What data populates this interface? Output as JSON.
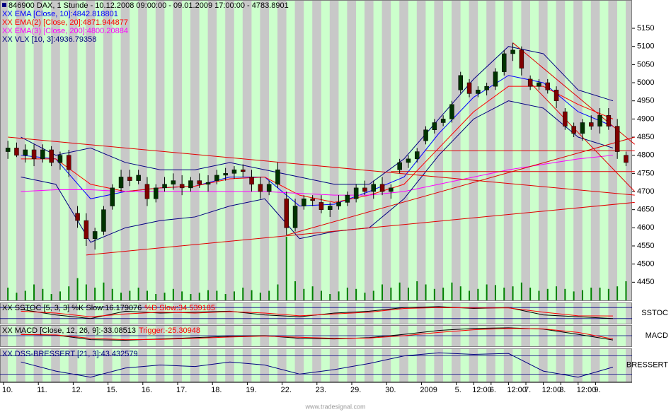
{
  "chart_data": {
    "type": "candlestick",
    "title": "846900 DAX, 1 Stunde - 10.12.2008 09:00:00 - 09.01.2009 17:00:00 - 4783.8901",
    "up_color": "#003300",
    "down_color": "#800000",
    "candles": [
      [
        4810,
        4840,
        4790,
        4820
      ],
      [
        4820,
        4835,
        4795,
        4800
      ],
      [
        4800,
        4830,
        4780,
        4815
      ],
      [
        4815,
        4830,
        4770,
        4790
      ],
      [
        4790,
        4830,
        4780,
        4815
      ],
      [
        4815,
        4825,
        4770,
        4780
      ],
      [
        4780,
        4810,
        4760,
        4800
      ],
      [
        4800,
        4815,
        4740,
        4760
      ],
      [
        4640,
        4660,
        4600,
        4620
      ],
      [
        4620,
        4640,
        4550,
        4570
      ],
      [
        4570,
        4600,
        4540,
        4590
      ],
      [
        4590,
        4660,
        4580,
        4650
      ],
      [
        4660,
        4720,
        4650,
        4710
      ],
      [
        4710,
        4760,
        4700,
        4740
      ],
      [
        4740,
        4760,
        4715,
        4730
      ],
      [
        4730,
        4760,
        4720,
        4745
      ],
      [
        4720,
        4740,
        4660,
        4680
      ],
      [
        4680,
        4720,
        4670,
        4710
      ],
      [
        4710,
        4740,
        4700,
        4720
      ],
      [
        4720,
        4750,
        4705,
        4730
      ],
      [
        4720,
        4745,
        4690,
        4710
      ],
      [
        4710,
        4740,
        4700,
        4730
      ],
      [
        4730,
        4750,
        4710,
        4720
      ],
      [
        4720,
        4745,
        4700,
        4725
      ],
      [
        4730,
        4760,
        4720,
        4745
      ],
      [
        4745,
        4765,
        4730,
        4750
      ],
      [
        4750,
        4770,
        4735,
        4760
      ],
      [
        4760,
        4775,
        4740,
        4755
      ],
      [
        4740,
        4760,
        4700,
        4720
      ],
      [
        4720,
        4740,
        4680,
        4700
      ],
      [
        4700,
        4730,
        4690,
        4720
      ],
      [
        4720,
        4780,
        4710,
        4760
      ],
      [
        4680,
        4700,
        4580,
        4600
      ],
      [
        4600,
        4680,
        4590,
        4660
      ],
      [
        4660,
        4690,
        4650,
        4680
      ],
      [
        4680,
        4690,
        4660,
        4675
      ],
      [
        4670,
        4690,
        4640,
        4650
      ],
      [
        4650,
        4670,
        4630,
        4660
      ],
      [
        4660,
        4690,
        4650,
        4670
      ],
      [
        4670,
        4700,
        4660,
        4690
      ],
      [
        4680,
        4720,
        4670,
        4710
      ],
      [
        4710,
        4730,
        4690,
        4700
      ],
      [
        4700,
        4730,
        4680,
        4720
      ],
      [
        4720,
        4740,
        4690,
        4700
      ],
      [
        4700,
        4720,
        4680,
        4710
      ],
      [
        4760,
        4790,
        4750,
        4780
      ],
      [
        4780,
        4800,
        4765,
        4790
      ],
      [
        4790,
        4820,
        4780,
        4810
      ],
      [
        4840,
        4880,
        4830,
        4870
      ],
      [
        4870,
        4900,
        4860,
        4890
      ],
      [
        4890,
        4910,
        4880,
        4900
      ],
      [
        4900,
        4950,
        4890,
        4940
      ],
      [
        4980,
        5030,
        4970,
        5020
      ],
      [
        5000,
        5010,
        4960,
        4970
      ],
      [
        4970,
        4990,
        4960,
        4980
      ],
      [
        4980,
        5000,
        4965,
        4990
      ],
      [
        4990,
        5040,
        4980,
        5030
      ],
      [
        5030,
        5090,
        5020,
        5080
      ],
      [
        5080,
        5110,
        5060,
        5090
      ],
      [
        5090,
        5100,
        5020,
        5040
      ],
      [
        5010,
        5020,
        4980,
        4990
      ],
      [
        4990,
        5010,
        4980,
        5000
      ],
      [
        5000,
        5010,
        4970,
        4980
      ],
      [
        4980,
        4990,
        4930,
        4950
      ],
      [
        4920,
        4930,
        4870,
        4880
      ],
      [
        4880,
        4890,
        4850,
        4860
      ],
      [
        4860,
        4900,
        4840,
        4890
      ],
      [
        4890,
        4910,
        4870,
        4880
      ],
      [
        4880,
        4930,
        4860,
        4910
      ],
      [
        4910,
        4930,
        4870,
        4880
      ],
      [
        4880,
        4900,
        4790,
        4810
      ],
      [
        4800,
        4810,
        4770,
        4780
      ]
    ],
    "ylim": [
      4400,
      5228
    ],
    "yticks": [
      4450,
      4500,
      4550,
      4600,
      4650,
      4700,
      4750,
      4800,
      4850,
      4900,
      4950,
      5000,
      5050,
      5100,
      5150
    ],
    "xticks": [
      {
        "value": 0,
        "label": "10."
      },
      {
        "value": 4,
        "label": "11."
      },
      {
        "value": 8,
        "label": "12."
      },
      {
        "value": 12,
        "label": "15."
      },
      {
        "value": 16,
        "label": "16."
      },
      {
        "value": 20,
        "label": "17."
      },
      {
        "value": 24,
        "label": "18."
      },
      {
        "value": 28,
        "label": "19."
      },
      {
        "value": 32,
        "label": "22."
      },
      {
        "value": 36,
        "label": "23."
      },
      {
        "value": 40,
        "label": "29."
      },
      {
        "value": 44,
        "label": "30."
      },
      {
        "value": 48,
        "label": "2009"
      },
      {
        "value": 52,
        "label": "5."
      },
      {
        "value": 54,
        "label": "12:00"
      },
      {
        "value": 56,
        "label": "6."
      },
      {
        "value": 58,
        "label": "12:00"
      },
      {
        "value": 60,
        "label": "7."
      },
      {
        "value": 62,
        "label": "12:00"
      },
      {
        "value": 64,
        "label": "8."
      },
      {
        "value": 66,
        "label": "12:00"
      },
      {
        "value": 68,
        "label": "9."
      }
    ],
    "line_x": [
      1.5,
      5.5,
      9.5,
      13.5,
      17.5,
      21.5,
      25.5,
      29.5,
      33.5,
      37.5,
      41.5,
      45.5,
      49.5,
      53.5,
      57.5,
      61.5,
      65.5,
      69.5
    ],
    "series": [
      {
        "name": "XX EMA [Close, 10]:4842.818801",
        "color": "#0000ff",
        "values": [
          4800,
          4790,
          4680,
          4700,
          4710,
          4715,
          4740,
          4740,
          4660,
          4665,
          4700,
          4740,
          4860,
          4960,
          5020,
          5000,
          4920,
          4880
        ]
      },
      {
        "name": "XX EMA(2) [Close, 20]:4871.944877",
        "color": "#ff0000",
        "values": [
          4790,
          4790,
          4720,
          4700,
          4710,
          4715,
          4735,
          4740,
          4690,
          4670,
          4690,
          4720,
          4820,
          4920,
          4990,
          4990,
          4940,
          4900
        ]
      },
      {
        "name": "XX EMA(3) [Close, 200]:4800.20884",
        "color": "#ff00ff",
        "values": [
          4700,
          4705,
          4705,
          4700,
          4700,
          4700,
          4700,
          4700,
          4695,
          4690,
          4690,
          4700,
          4720,
          4740,
          4760,
          4775,
          4790,
          4800
        ]
      },
      {
        "name": "XX VLX [10, 3]:4936.79358",
        "color": "#000080",
        "values": [
          4850,
          4800,
          4820,
          4780,
          4760,
          4760,
          4780,
          4760,
          4740,
          4720,
          4720,
          4790,
          4900,
          5010,
          5100,
          5080,
          4980,
          4950
        ]
      },
      {
        "color": "#000080",
        "values": [
          4740,
          4720,
          4560,
          4600,
          4620,
          4630,
          4660,
          4680,
          4570,
          4590,
          4600,
          4680,
          4800,
          4900,
          4950,
          4930,
          4850,
          4820
        ]
      }
    ],
    "trendline_color": "#e00000",
    "trendlines": [
      [
        0,
        4850,
        72,
        4690
      ],
      [
        9,
        4525,
        72,
        4670
      ],
      [
        32,
        4580,
        72,
        4850
      ],
      [
        48,
        4812,
        72,
        4812
      ],
      [
        44,
        4755,
        72,
        4755
      ],
      [
        58,
        5110,
        72,
        4830
      ],
      [
        60,
        5000,
        72,
        4700
      ]
    ],
    "volume_color": "#008000",
    "vlim": [
      0,
      100
    ],
    "volume": [
      20,
      12,
      15,
      25,
      18,
      10,
      14,
      22,
      35,
      25,
      20,
      28,
      18,
      12,
      15,
      20,
      15,
      10,
      12,
      18,
      14,
      10,
      12,
      16,
      15,
      10,
      14,
      20,
      16,
      12,
      15,
      25,
      100,
      30,
      18,
      22,
      15,
      10,
      14,
      20,
      18,
      12,
      15,
      25,
      20,
      28,
      20,
      30,
      25,
      18,
      20,
      28,
      22,
      15,
      18,
      25,
      24,
      20,
      22,
      28,
      20,
      15,
      18,
      22,
      18,
      14,
      16,
      20,
      20,
      18,
      22,
      30
    ],
    "indicators": [
      {
        "label": "SSTOC",
        "ylim": [
          0,
          100
        ],
        "levels": [
          20,
          80
        ],
        "series": [
          {
            "name": "XX SSTOC [5, 3, 3] %K Slow:16.179076",
            "color": "#000000",
            "values": [
              70,
              40,
              20,
              60,
              50,
              55,
              60,
              40,
              30,
              50,
              60,
              80,
              85,
              75,
              80,
              40,
              30,
              20
            ]
          },
          {
            "name": "%D Slow:34.539185",
            "color": "#ff0000",
            "values": [
              60,
              50,
              30,
              45,
              55,
              50,
              58,
              50,
              35,
              45,
              55,
              75,
              80,
              78,
              78,
              55,
              35,
              34
            ]
          }
        ]
      },
      {
        "label": "MACD",
        "ylim": [
          -70,
          70
        ],
        "levels": [
          0
        ],
        "series": [
          {
            "name": "XX MACD [Close, 12, 26, 9]:-33.08513",
            "color": "#000000",
            "values": [
              10,
              5,
              -30,
              -35,
              -25,
              -15,
              -5,
              0,
              -20,
              -25,
              -15,
              10,
              40,
              55,
              60,
              50,
              10,
              -33
            ]
          },
          {
            "name": "Trigger:-25.30948",
            "color": "#ff0000",
            "values": [
              8,
              6,
              -20,
              -30,
              -28,
              -20,
              -10,
              -3,
              -12,
              -20,
              -18,
              0,
              25,
              45,
              55,
              52,
              25,
              -25
            ]
          }
        ]
      },
      {
        "label": "BRESSERT",
        "ylim": [
          0,
          100
        ],
        "levels": [
          20,
          80
        ],
        "series": [
          {
            "name": "XX DSS-BRESSERT [21, 3]:43.432579",
            "color": "#000080",
            "values": [
              60,
              30,
              10,
              40,
              50,
              45,
              60,
              50,
              20,
              35,
              55,
              80,
              90,
              85,
              88,
              30,
              10,
              43
            ]
          }
        ]
      }
    ]
  },
  "footer": "www.tradesignal.com"
}
